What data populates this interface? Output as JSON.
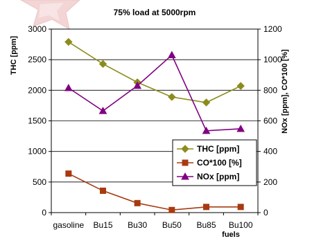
{
  "chart_data": {
    "type": "line",
    "title": "75% load at 5000rpm",
    "xlabel": "fuels",
    "ylabel_left": "THC [ppm]",
    "ylabel_right": "NOx [ppm], CO*100 [%]",
    "categories": [
      "gasoline",
      "Bu15",
      "Bu30",
      "Bu50",
      "Bu85",
      "Bu100"
    ],
    "y_left": {
      "min": 0,
      "max": 3000,
      "ticks": [
        0,
        500,
        1000,
        1500,
        2000,
        2500,
        3000
      ]
    },
    "y_right": {
      "min": 0,
      "max": 1200,
      "ticks": [
        0,
        200,
        400,
        600,
        800,
        1000,
        1200
      ]
    },
    "grid": "horizontal",
    "legend_position": "bottom-right",
    "series": [
      {
        "name": "THC [ppm]",
        "axis": "left",
        "marker": "diamond",
        "color": "#8c8c1c",
        "values": [
          2790,
          2430,
          2130,
          1890,
          1800,
          2070
        ]
      },
      {
        "name": "CO*100 [%]",
        "axis": "right",
        "marker": "square",
        "color": "#a83a10",
        "values": [
          255,
          143,
          62,
          17,
          37,
          37
        ]
      },
      {
        "name": "NOx [ppm]",
        "axis": "right",
        "marker": "triangle",
        "color": "#800080",
        "values": [
          815,
          665,
          830,
          1030,
          535,
          548
        ]
      }
    ]
  }
}
